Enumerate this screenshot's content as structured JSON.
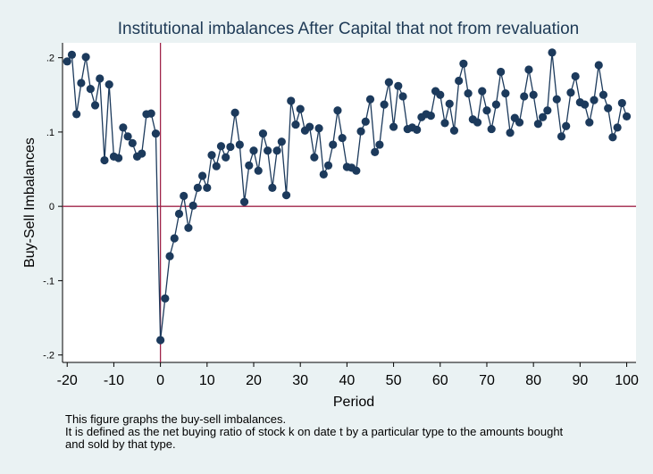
{
  "chart_data": {
    "type": "line",
    "title": "Institutional imbalances After Capital that not from revaluation",
    "xlabel": "Period",
    "ylabel": "Buy-Sell Imbalances",
    "xlim": [
      -21,
      102
    ],
    "ylim": [
      -0.21,
      0.22
    ],
    "xticks": [
      -20,
      -10,
      0,
      10,
      20,
      30,
      40,
      50,
      60,
      70,
      80,
      90,
      100
    ],
    "xtick_labels": [
      "-20",
      "-10",
      "0",
      "10",
      "20",
      "30",
      "40",
      "50",
      "60",
      "70",
      "80",
      "90",
      "100"
    ],
    "yticks": [
      -0.2,
      -0.1,
      0,
      0.1,
      0.2
    ],
    "ytick_labels": [
      "-.2",
      "-.1",
      "0",
      ".1",
      ".2"
    ],
    "reference_lines": {
      "x": 0,
      "y": 0,
      "color": "#a0244a"
    },
    "grid": false,
    "marker_color": "#1c3a5c",
    "line_color": "#1c3a5c",
    "series": [
      {
        "x": [
          -20,
          -19,
          -18,
          -17,
          -16,
          -15,
          -14,
          -13,
          -12,
          -11,
          -10,
          -9,
          -8,
          -7,
          -6,
          -5,
          -4,
          -3,
          -2,
          -1,
          0,
          1,
          2,
          3,
          4,
          5,
          6,
          7,
          8,
          9,
          10,
          11,
          12,
          13,
          14,
          15,
          16,
          17,
          18,
          19,
          20,
          21,
          22,
          23,
          24,
          25,
          26,
          27,
          28,
          29,
          30,
          31,
          32,
          33,
          34,
          35,
          36,
          37,
          38,
          39,
          40,
          41,
          42,
          43,
          44,
          45,
          46,
          47,
          48,
          49,
          50,
          51,
          52,
          53,
          54,
          55,
          56,
          57,
          58,
          59,
          60,
          61,
          62,
          63,
          64,
          65,
          66,
          67,
          68,
          69,
          70,
          71,
          72,
          73,
          74,
          75,
          76,
          77,
          78,
          79,
          80,
          81,
          82,
          83,
          84,
          85,
          86,
          87,
          88,
          89,
          90,
          91,
          92,
          93,
          94,
          95,
          96,
          97,
          98,
          99,
          100
        ],
        "values": [
          0.195,
          0.204,
          0.124,
          0.166,
          0.201,
          0.158,
          0.136,
          0.172,
          0.062,
          0.164,
          0.067,
          0.065,
          0.106,
          0.094,
          0.085,
          0.067,
          0.071,
          0.124,
          0.125,
          0.098,
          -0.18,
          -0.124,
          -0.067,
          -0.043,
          -0.01,
          0.014,
          -0.029,
          0.001,
          0.025,
          0.041,
          0.025,
          0.069,
          0.054,
          0.081,
          0.066,
          0.08,
          0.126,
          0.083,
          0.006,
          0.055,
          0.075,
          0.048,
          0.098,
          0.075,
          0.025,
          0.075,
          0.087,
          0.015,
          0.142,
          0.11,
          0.131,
          0.102,
          0.107,
          0.066,
          0.105,
          0.043,
          0.055,
          0.083,
          0.129,
          0.092,
          0.053,
          0.052,
          0.048,
          0.101,
          0.114,
          0.144,
          0.073,
          0.083,
          0.137,
          0.167,
          0.107,
          0.162,
          0.148,
          0.104,
          0.106,
          0.103,
          0.12,
          0.124,
          0.122,
          0.155,
          0.15,
          0.112,
          0.138,
          0.102,
          0.169,
          0.192,
          0.152,
          0.117,
          0.113,
          0.155,
          0.129,
          0.104,
          0.137,
          0.181,
          0.152,
          0.099,
          0.119,
          0.113,
          0.148,
          0.184,
          0.15,
          0.111,
          0.12,
          0.129,
          0.207,
          0.144,
          0.094,
          0.108,
          0.153,
          0.175,
          0.14,
          0.137,
          0.113,
          0.143,
          0.19,
          0.15,
          0.132,
          0.093,
          0.106,
          0.139,
          0.121
        ]
      }
    ]
  },
  "note_lines": [
    "This figure graphs the buy-sell imbalances.",
    "It is defined as the net buying ratio of stock k on date t by a particular type to the amounts bought",
    "and sold by that type."
  ]
}
